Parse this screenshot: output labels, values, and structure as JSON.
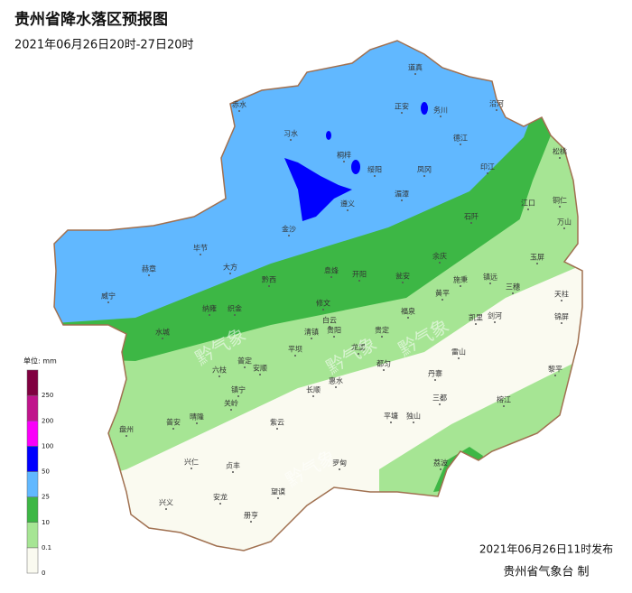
{
  "header": {
    "title": "贵州省降水落区预报图",
    "subtitle": "2021年06月26日20时-27日20时"
  },
  "legend": {
    "unit": "单位: mm",
    "items": [
      {
        "label": 0,
        "color": "#fafaf0"
      },
      {
        "label": 0.1,
        "color": "#a6e594"
      },
      {
        "label": 10,
        "color": "#3db745"
      },
      {
        "label": 25,
        "color": "#61b8ff"
      },
      {
        "label": 50,
        "color": "#0000ff"
      },
      {
        "label": 100,
        "color": "#fa00fa"
      },
      {
        "label": 200,
        "color": "#c0148c"
      },
      {
        "label": 250,
        "color": "#800040"
      }
    ]
  },
  "cities": [
    "道真",
    "正安",
    "务川",
    "沿河",
    "桐梓",
    "习水",
    "赤水",
    "德江",
    "印江",
    "松桃",
    "凤冈",
    "绥阳",
    "湄潭",
    "遵义",
    "金沙",
    "铜仁",
    "江口",
    "石阡",
    "万山",
    "毕节",
    "赫章",
    "大方",
    "黔西",
    "威宁",
    "余庆",
    "瓮安",
    "开阳",
    "息烽",
    "修文",
    "施秉",
    "镇远",
    "玉屏",
    "三穗",
    "天柱",
    "黄平",
    "织金",
    "纳雍",
    "福泉",
    "白云",
    "贵阳",
    "清镇",
    "龙里",
    "贵定",
    "凯里",
    "水城",
    "六枝",
    "普定",
    "安顺",
    "平坝",
    "长顺",
    "惠水",
    "都匀",
    "丹寨",
    "雷山",
    "剑河",
    "锦屏",
    "黎平",
    "榕江",
    "三都",
    "独山",
    "平塘",
    "罗甸",
    "紫云",
    "镇宁",
    "关岭",
    "盘州",
    "普安",
    "晴隆",
    "兴仁",
    "贞丰",
    "望谟",
    "兴义",
    "安龙",
    "册亨",
    "荔波"
  ],
  "watermark": "黔气象",
  "footer": {
    "issued": "2021年06月26日11时发布",
    "issuer": "贵州省气象台 制"
  }
}
